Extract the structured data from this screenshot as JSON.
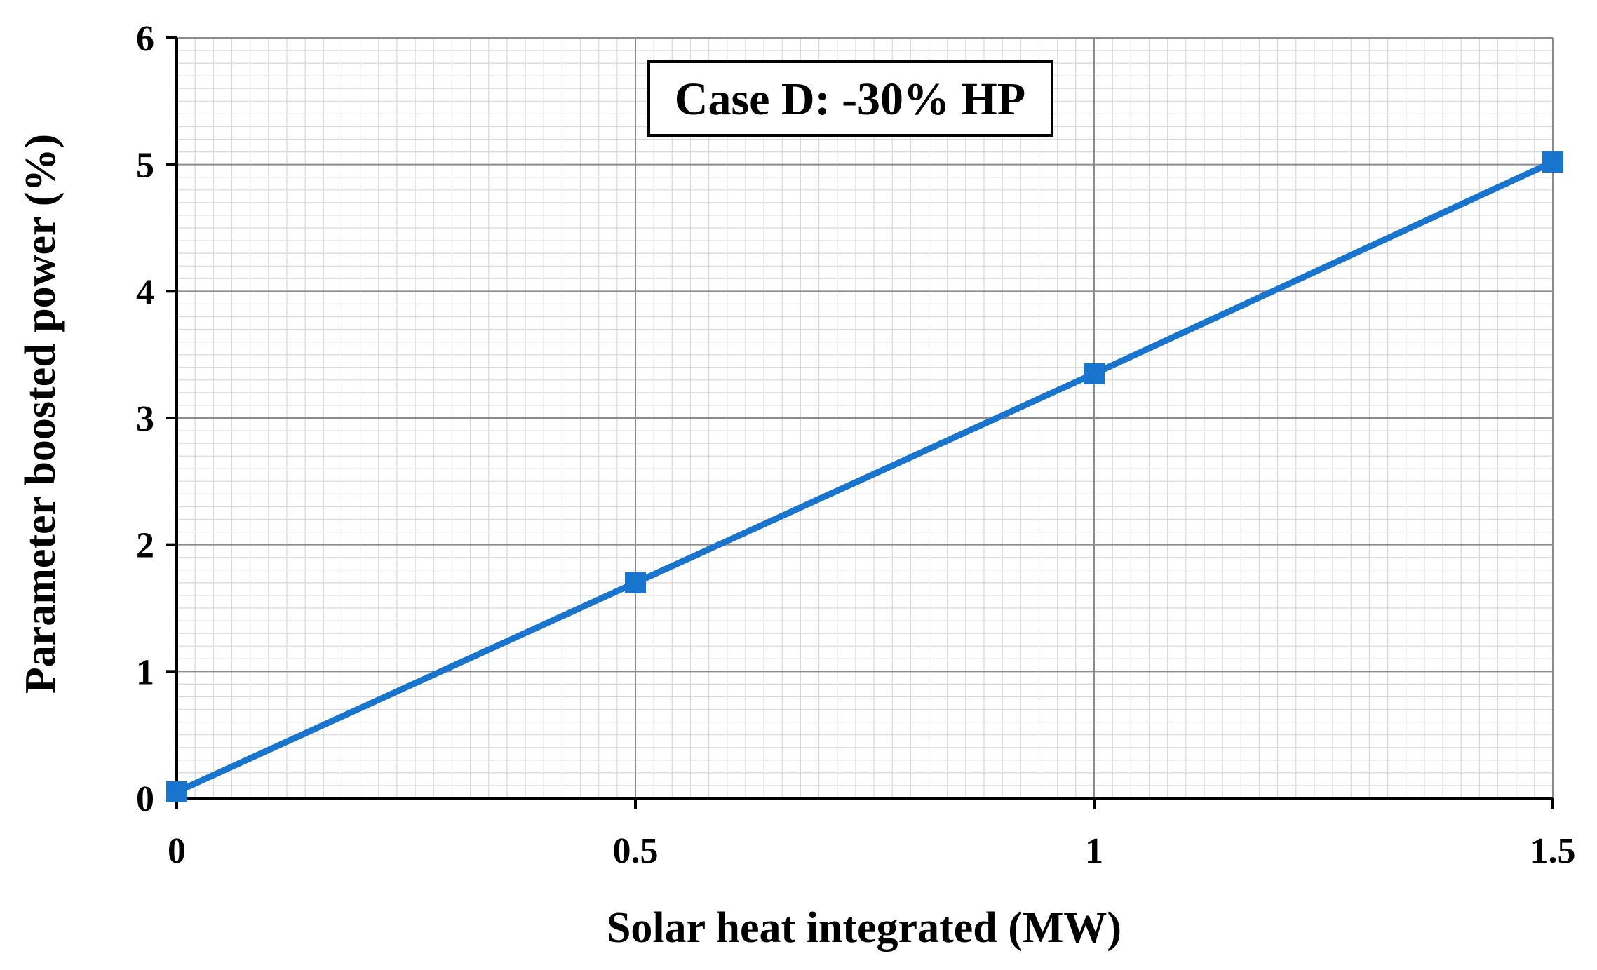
{
  "chart_data": {
    "type": "line",
    "title": "",
    "xlabel": "Solar heat integrated (MW)",
    "ylabel": "Parameter boosted power (%)",
    "xlim": [
      0,
      1.5
    ],
    "ylim": [
      0,
      6
    ],
    "xticks": [
      0,
      0.5,
      1,
      1.5
    ],
    "xtick_labels": [
      "0",
      "0.5",
      "1",
      "1.5"
    ],
    "yticks": [
      0,
      1,
      2,
      3,
      4,
      5,
      6
    ],
    "ytick_labels": [
      "0",
      "1",
      "2",
      "3",
      "4",
      "5",
      "6"
    ],
    "grid": "major and minor",
    "legend": "none",
    "annotation": "Case D: -30% HP",
    "series": [
      {
        "color": "#1874CD",
        "marker": "square",
        "x": [
          0,
          0.5,
          1,
          1.5
        ],
        "y": [
          0.05,
          1.7,
          3.35,
          5.02
        ]
      }
    ]
  }
}
